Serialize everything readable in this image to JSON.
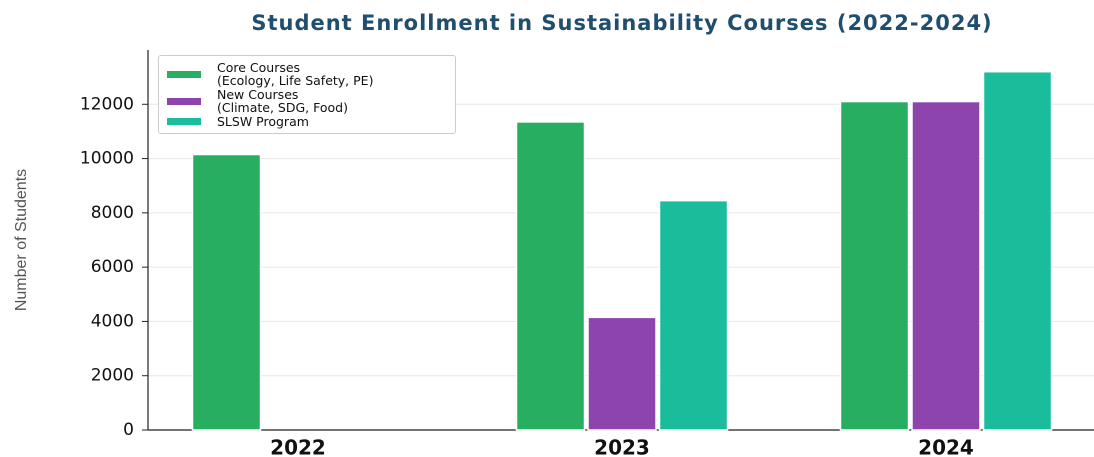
{
  "chart_data": {
    "type": "bar",
    "title": "Student Enrollment in Sustainability Courses (2022-2024)",
    "y_label": "Number of Students",
    "categories": [
      "2022",
      "2023",
      "2024"
    ],
    "series": [
      {
        "name": "Core Courses\n(Ecology, Life Safety, PE)",
        "color": "#27ae60",
        "values": [
          10150,
          11350,
          12100
        ]
      },
      {
        "name": "New Courses\n(Climate, SDG, Food)",
        "color": "#8e44ad",
        "values": [
          0,
          4150,
          12100
        ]
      },
      {
        "name": "SLSW Program",
        "color": "#1abc9c",
        "values": [
          0,
          8450,
          13200
        ]
      }
    ],
    "ylim": [
      0,
      14000
    ],
    "yticks": [
      0,
      2000,
      4000,
      6000,
      8000,
      10000,
      12000
    ],
    "grid": true,
    "legend": "upper left"
  }
}
